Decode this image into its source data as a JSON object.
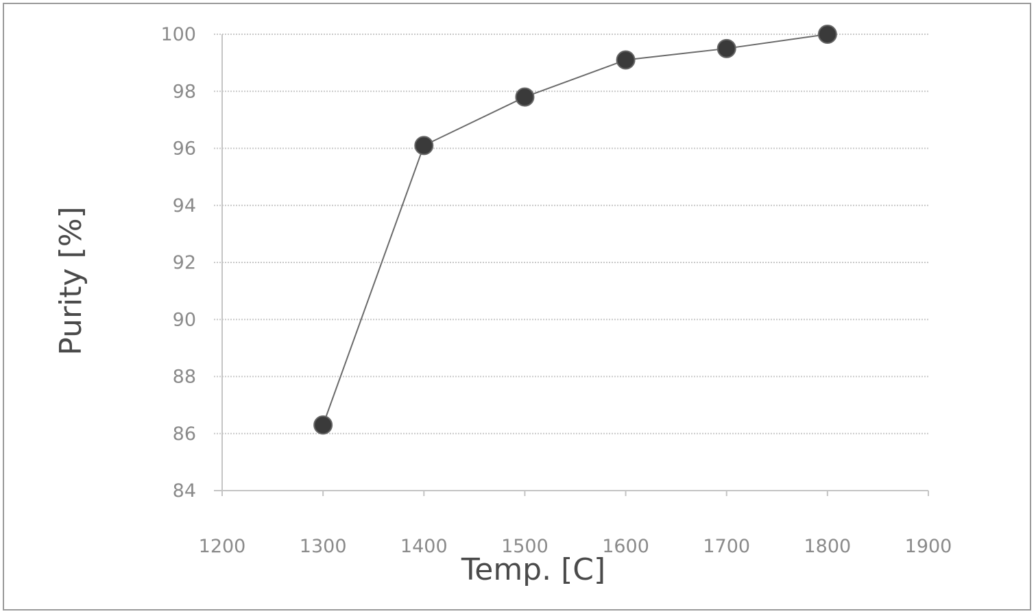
{
  "chart_data": {
    "type": "scatter",
    "title": "",
    "xlabel": "Temp. [C]",
    "ylabel": "Purity [%]",
    "xlim": [
      1200,
      1900
    ],
    "ylim": [
      84,
      100
    ],
    "x_ticks": [
      1200,
      1300,
      1400,
      1500,
      1600,
      1700,
      1800,
      1900
    ],
    "y_ticks": [
      84,
      86,
      88,
      90,
      92,
      94,
      96,
      98,
      100
    ],
    "grid": true,
    "legend": false,
    "lines_connect_points": true,
    "colors": {
      "line": "#6a6a6a",
      "marker": "#3a3a3a",
      "grid": "#c8c8c8",
      "text": "#8a8a8a"
    },
    "series": [
      {
        "x": [
          1300,
          1400,
          1500,
          1600,
          1700,
          1800
        ],
        "y": [
          86.3,
          96.1,
          97.8,
          99.1,
          99.5,
          100.0
        ]
      }
    ]
  }
}
